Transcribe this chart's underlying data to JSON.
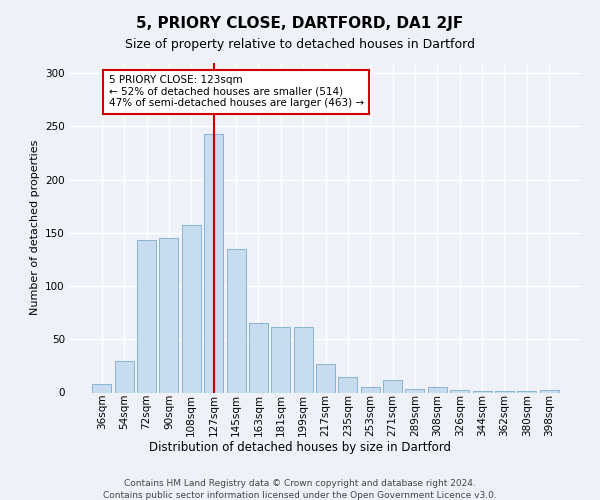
{
  "title1": "5, PRIORY CLOSE, DARTFORD, DA1 2JF",
  "title2": "Size of property relative to detached houses in Dartford",
  "xlabel": "Distribution of detached houses by size in Dartford",
  "ylabel": "Number of detached properties",
  "categories": [
    "36sqm",
    "54sqm",
    "72sqm",
    "90sqm",
    "108sqm",
    "127sqm",
    "145sqm",
    "163sqm",
    "181sqm",
    "199sqm",
    "217sqm",
    "235sqm",
    "253sqm",
    "271sqm",
    "289sqm",
    "308sqm",
    "326sqm",
    "344sqm",
    "362sqm",
    "380sqm",
    "398sqm"
  ],
  "values": [
    8,
    30,
    143,
    145,
    157,
    243,
    135,
    65,
    62,
    62,
    27,
    15,
    5,
    12,
    3,
    5,
    2,
    1,
    1,
    1,
    2
  ],
  "bar_color": "#c8dcf0",
  "bar_edge_color": "#8ab4d4",
  "vline_position": 5.0,
  "vline_color": "#cc0000",
  "annotation_line1": "5 PRIORY CLOSE: 123sqm",
  "annotation_line2": "← 52% of detached houses are smaller (514)",
  "annotation_line3": "47% of semi-detached houses are larger (463) →",
  "annotation_box_facecolor": "white",
  "annotation_box_edgecolor": "#cc0000",
  "footer1": "Contains HM Land Registry data © Crown copyright and database right 2024.",
  "footer2": "Contains public sector information licensed under the Open Government Licence v3.0.",
  "bg_color": "#eef2f8",
  "ylim": [
    0,
    310
  ],
  "yticks": [
    0,
    50,
    100,
    150,
    200,
    250,
    300
  ],
  "title1_fontsize": 11,
  "title2_fontsize": 9,
  "ylabel_fontsize": 8,
  "xlabel_fontsize": 8.5,
  "tick_fontsize": 7.5,
  "footer_fontsize": 6.5
}
